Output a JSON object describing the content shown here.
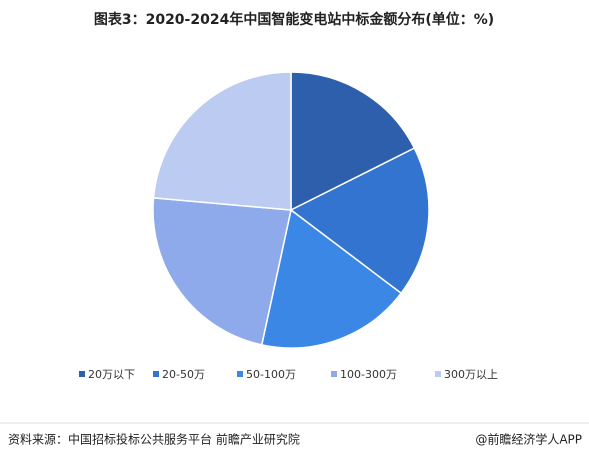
{
  "chart_data": {
    "type": "pie",
    "title": "图表3：2020-2024年中国智能变电站中标金额分布(单位：%)",
    "categories": [
      "20万以下",
      "20-50万",
      "50-100万",
      "100-300万",
      "300万以上"
    ],
    "values": [
      17.6,
      17.7,
      18.1,
      23.0,
      23.6
    ],
    "colors": [
      "#2d5fad",
      "#3274d0",
      "#3b87e6",
      "#8eaaea",
      "#bccbf2"
    ],
    "legend": "bottom"
  },
  "footer": {
    "source": "资料来源：中国招标投标公共服务平台 前瞻产业研究院",
    "brand": "@前瞻经济学人APP"
  }
}
